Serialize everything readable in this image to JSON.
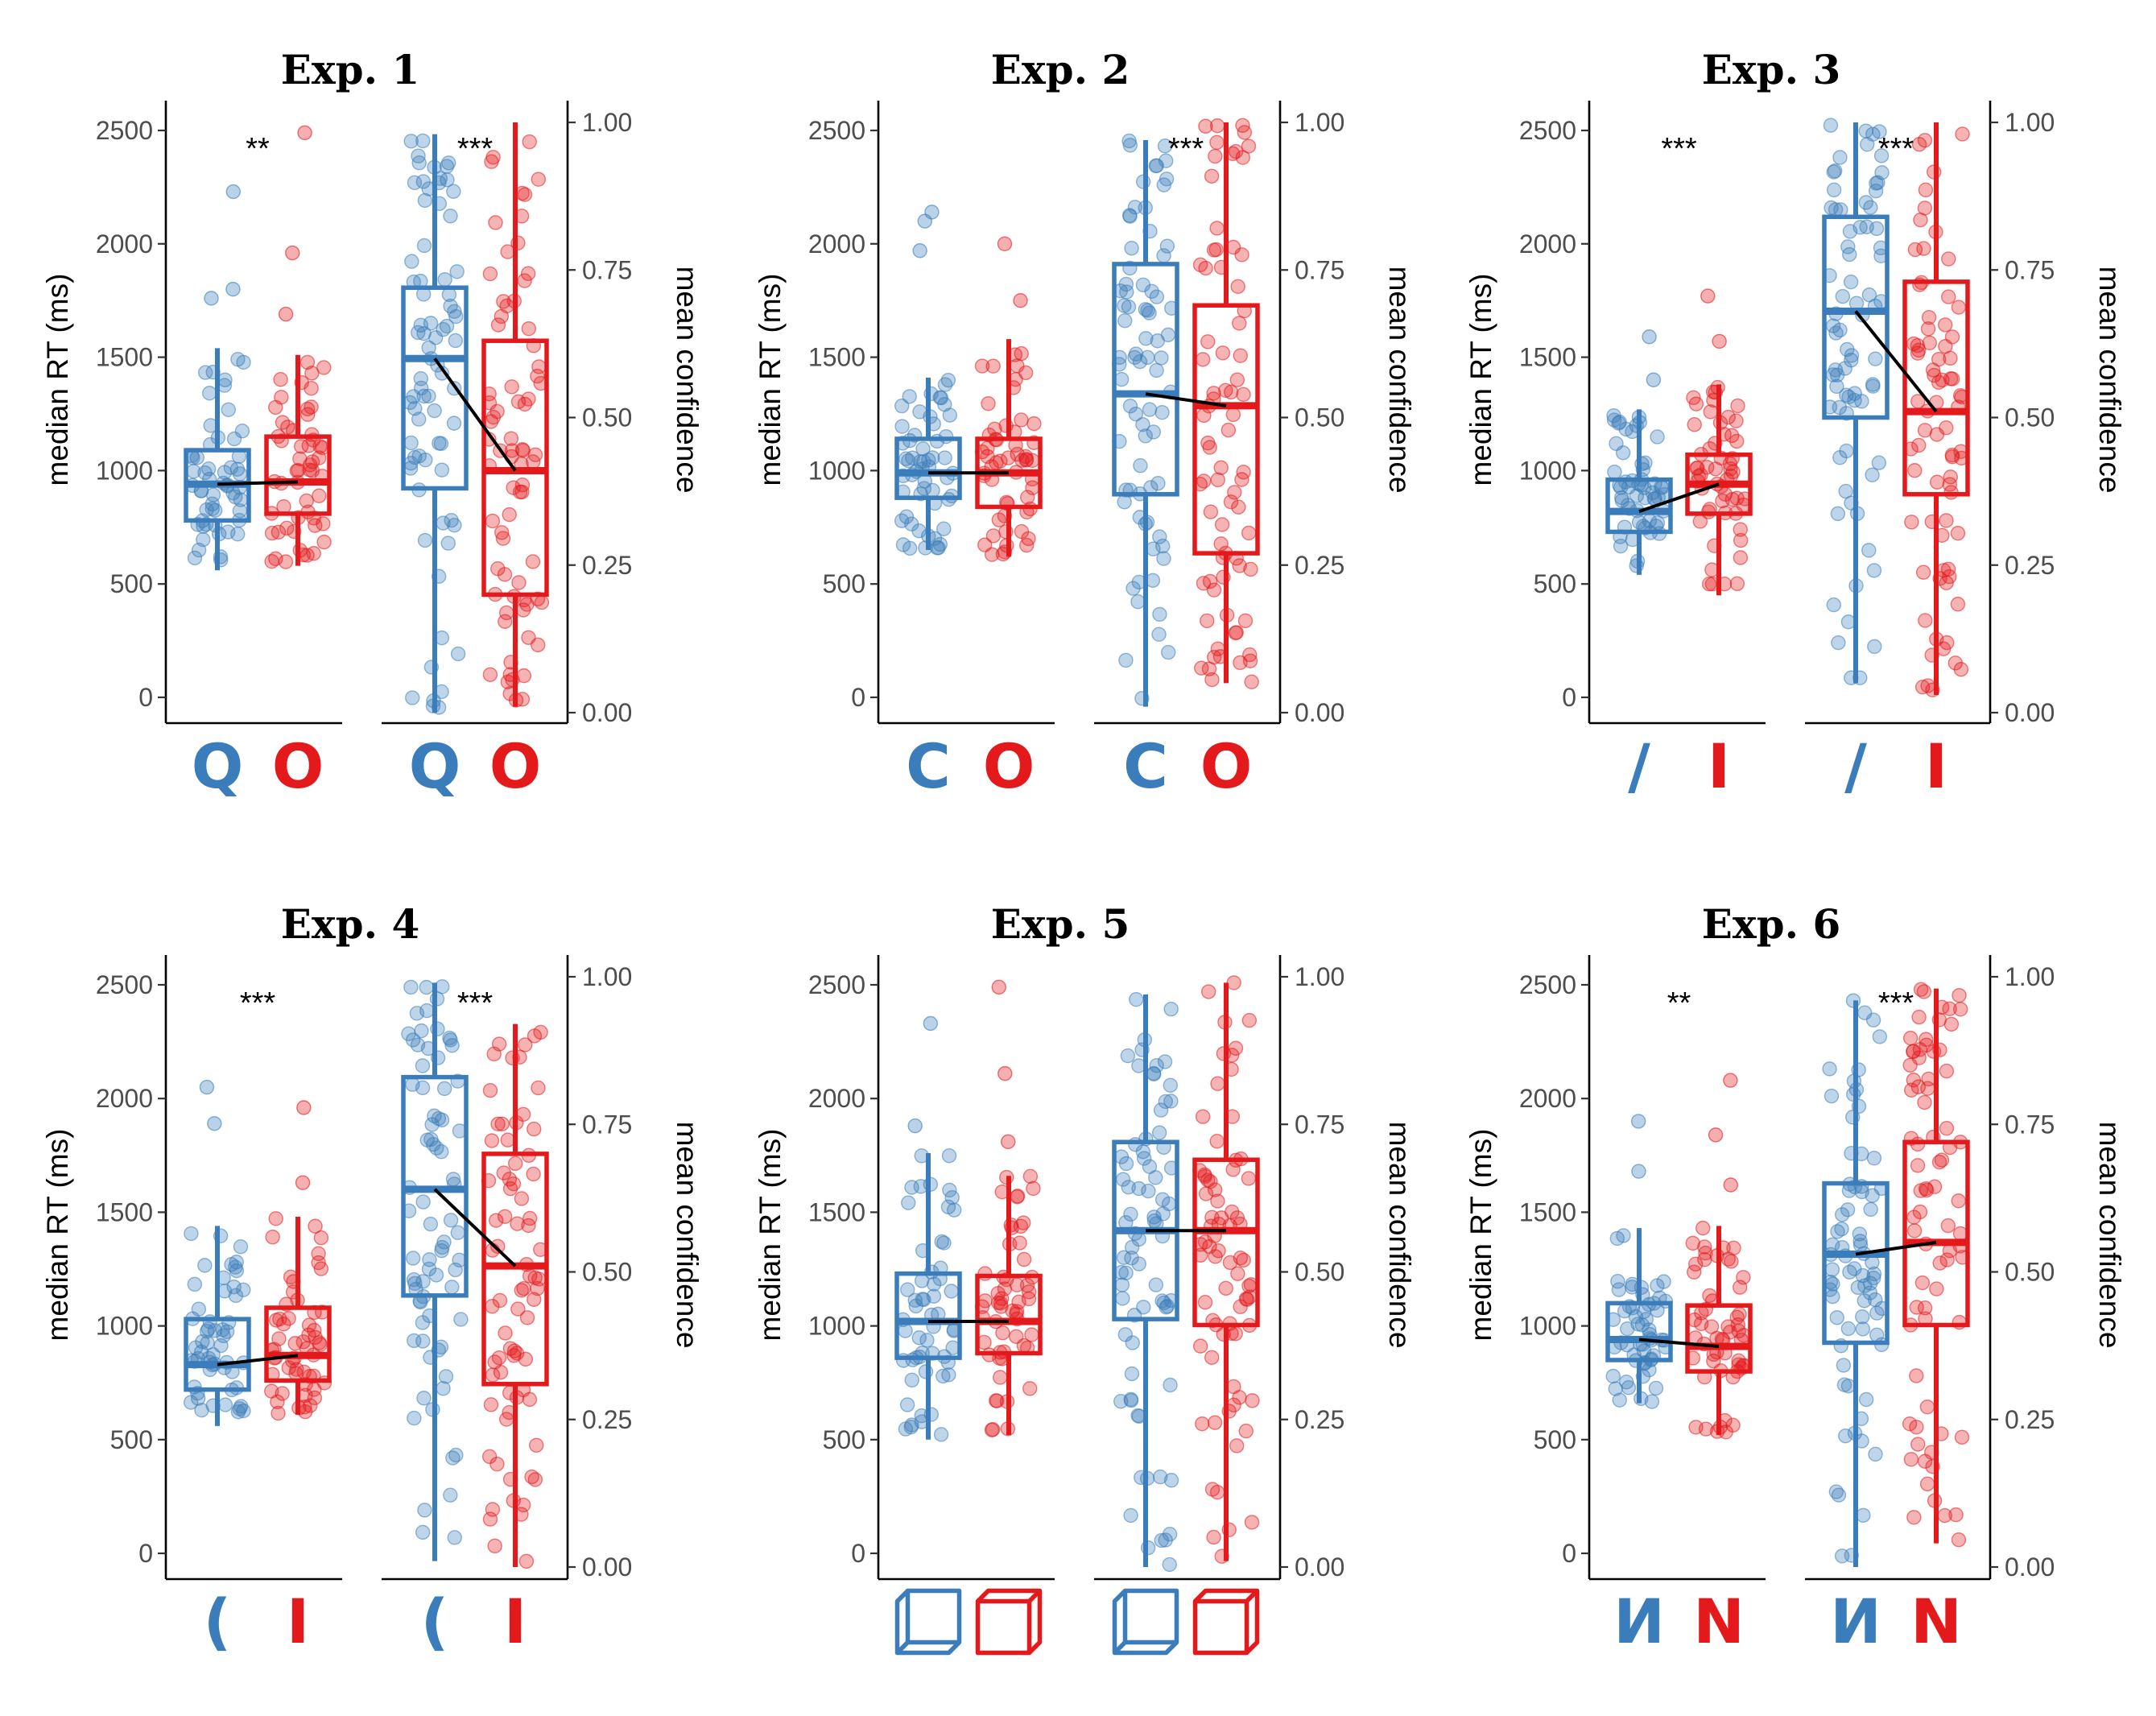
{
  "colors": {
    "blue": "#3A7DBA",
    "red": "#E3191C",
    "line": "#000000"
  },
  "axes": {
    "rt_label": "median RT (ms)",
    "conf_label": "mean confidence",
    "rt_ticks": [
      "0",
      "500",
      "1000",
      "1500",
      "2000",
      "2500"
    ],
    "conf_ticks": [
      "0.00",
      "0.25",
      "0.50",
      "0.75",
      "1.00"
    ]
  },
  "chart_data": [
    {
      "type": "boxplot",
      "title": "Exp. 1",
      "stimuli": {
        "blue": "Q",
        "red": "O"
      },
      "stimulus_icon": "letter",
      "rt": {
        "ylabel": "median RT (ms)",
        "ylim": [
          0,
          2500
        ],
        "significance": "**",
        "blue": {
          "q1": 780,
          "median": 940,
          "q3": 1090,
          "lower": 560,
          "upper": 1540,
          "outliers": [
            1760,
            1800,
            2230
          ]
        },
        "red": {
          "q1": 810,
          "median": 950,
          "q3": 1150,
          "lower": 580,
          "upper": 1510,
          "outliers": [
            1690,
            1960,
            2490
          ]
        }
      },
      "confidence": {
        "ylabel": "mean confidence",
        "ylim": [
          0,
          1
        ],
        "significance": "***",
        "blue": {
          "q1": 0.38,
          "median": 0.6,
          "q3": 0.72,
          "lower": 0.0,
          "upper": 0.98,
          "outliers": []
        },
        "red": {
          "q1": 0.2,
          "median": 0.41,
          "q3": 0.63,
          "lower": 0.01,
          "upper": 1.0,
          "outliers": []
        }
      }
    },
    {
      "type": "boxplot",
      "title": "Exp. 2",
      "stimuli": {
        "blue": "C",
        "red": "O"
      },
      "stimulus_icon": "letter",
      "rt": {
        "ylabel": "median RT (ms)",
        "ylim": [
          0,
          2500
        ],
        "significance": "",
        "blue": {
          "q1": 880,
          "median": 990,
          "q3": 1140,
          "lower": 650,
          "upper": 1410,
          "outliers": [
            1970,
            2100,
            2140
          ]
        },
        "red": {
          "q1": 840,
          "median": 990,
          "q3": 1140,
          "lower": 620,
          "upper": 1580,
          "outliers": [
            1750,
            2000
          ]
        }
      },
      "confidence": {
        "ylabel": "mean confidence",
        "ylim": [
          0,
          1
        ],
        "significance": "***",
        "blue": {
          "q1": 0.37,
          "median": 0.54,
          "q3": 0.76,
          "lower": 0.01,
          "upper": 0.97,
          "outliers": []
        },
        "red": {
          "q1": 0.27,
          "median": 0.52,
          "q3": 0.69,
          "lower": 0.05,
          "upper": 1.0,
          "outliers": []
        }
      }
    },
    {
      "type": "boxplot",
      "title": "Exp. 3",
      "stimuli": {
        "blue": "/",
        "red": "I"
      },
      "stimulus_icon": "letter",
      "rt": {
        "ylabel": "median RT (ms)",
        "ylim": [
          0,
          2500
        ],
        "significance": "***",
        "blue": {
          "q1": 730,
          "median": 820,
          "q3": 960,
          "lower": 540,
          "upper": 1270,
          "outliers": [
            1400,
            1590
          ]
        },
        "red": {
          "q1": 810,
          "median": 940,
          "q3": 1070,
          "lower": 450,
          "upper": 1380,
          "outliers": [
            1570,
            1770
          ]
        }
      },
      "confidence": {
        "ylabel": "mean confidence",
        "ylim": [
          0,
          1
        ],
        "significance": "***",
        "blue": {
          "q1": 0.5,
          "median": 0.68,
          "q3": 0.84,
          "lower": 0.05,
          "upper": 1.0,
          "outliers": []
        },
        "red": {
          "q1": 0.37,
          "median": 0.51,
          "q3": 0.73,
          "lower": 0.03,
          "upper": 1.0,
          "outliers": []
        }
      }
    },
    {
      "type": "boxplot",
      "title": "Exp. 4",
      "stimuli": {
        "blue": "(",
        "red": "I"
      },
      "stimulus_icon": "letter",
      "rt": {
        "ylabel": "median RT (ms)",
        "ylim": [
          0,
          2500
        ],
        "significance": "***",
        "blue": {
          "q1": 720,
          "median": 830,
          "q3": 1030,
          "lower": 560,
          "upper": 1440,
          "outliers": [
            1890,
            2050
          ]
        },
        "red": {
          "q1": 760,
          "median": 870,
          "q3": 1080,
          "lower": 610,
          "upper": 1480,
          "outliers": [
            1630,
            1960
          ]
        }
      },
      "confidence": {
        "ylabel": "mean confidence",
        "ylim": [
          0,
          1
        ],
        "significance": "***",
        "blue": {
          "q1": 0.46,
          "median": 0.64,
          "q3": 0.83,
          "lower": 0.01,
          "upper": 0.99,
          "outliers": []
        },
        "red": {
          "q1": 0.31,
          "median": 0.51,
          "q3": 0.7,
          "lower": 0.0,
          "upper": 0.92,
          "outliers": []
        }
      }
    },
    {
      "type": "boxplot",
      "title": "Exp. 5",
      "stimuli": {
        "blue": "cube (left-shaded)",
        "red": "cube (right-shaded)"
      },
      "stimulus_icon": "cube",
      "rt": {
        "ylabel": "median RT (ms)",
        "ylim": [
          0,
          2500
        ],
        "significance": "",
        "blue": {
          "q1": 860,
          "median": 1020,
          "q3": 1230,
          "lower": 500,
          "upper": 1760,
          "outliers": [
            1880,
            2330
          ]
        },
        "red": {
          "q1": 880,
          "median": 1020,
          "q3": 1220,
          "lower": 520,
          "upper": 1660,
          "outliers": [
            1810,
            2110,
            2490
          ]
        }
      },
      "confidence": {
        "ylabel": "mean confidence",
        "ylim": [
          0,
          1
        ],
        "significance": "",
        "blue": {
          "q1": 0.42,
          "median": 0.57,
          "q3": 0.72,
          "lower": 0.0,
          "upper": 0.97,
          "outliers": []
        },
        "red": {
          "q1": 0.41,
          "median": 0.57,
          "q3": 0.69,
          "lower": 0.01,
          "upper": 0.99,
          "outliers": []
        }
      }
    },
    {
      "type": "boxplot",
      "title": "Exp. 6",
      "stimuli": {
        "blue": "И",
        "red": "N"
      },
      "stimulus_icon": "letter",
      "rt": {
        "ylabel": "median RT (ms)",
        "ylim": [
          0,
          2500
        ],
        "significance": "**",
        "blue": {
          "q1": 850,
          "median": 940,
          "q3": 1100,
          "lower": 660,
          "upper": 1430,
          "outliers": [
            1680,
            1900
          ]
        },
        "red": {
          "q1": 800,
          "median": 910,
          "q3": 1090,
          "lower": 520,
          "upper": 1440,
          "outliers": [
            1620,
            1840,
            2080
          ]
        }
      },
      "confidence": {
        "ylabel": "mean confidence",
        "ylim": [
          0,
          1
        ],
        "significance": "***",
        "blue": {
          "q1": 0.38,
          "median": 0.53,
          "q3": 0.65,
          "lower": 0.0,
          "upper": 0.96,
          "outliers": []
        },
        "red": {
          "q1": 0.41,
          "median": 0.55,
          "q3": 0.72,
          "lower": 0.04,
          "upper": 0.98,
          "outliers": []
        }
      }
    }
  ]
}
